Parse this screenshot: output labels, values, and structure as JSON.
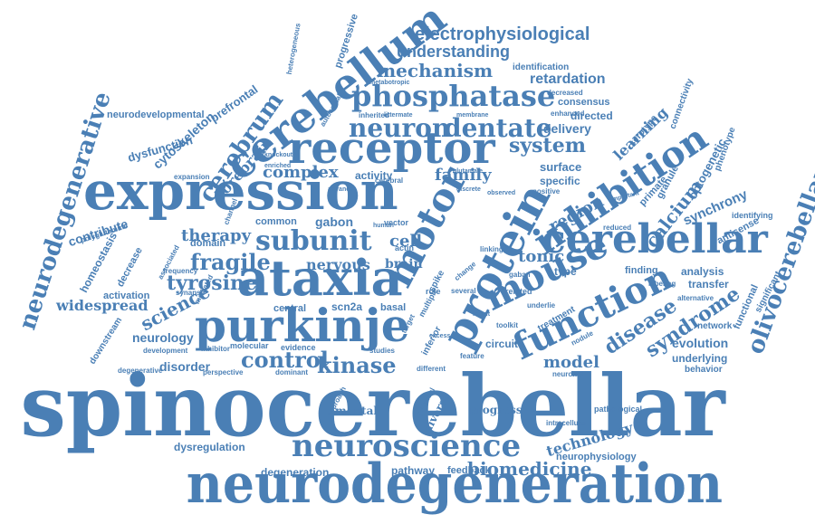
{
  "cloud": {
    "color": "#4a7fb5",
    "background": "#ffffff",
    "words": [
      "spinocerebellar",
      "neurodegeneration",
      "expression",
      "ataxia",
      "purkinje",
      "receptor",
      "cerebellum",
      "protein",
      "inhibition",
      "function",
      "mouse",
      "cerebellar",
      "phosphatase",
      "neuroscience",
      "motor",
      "subunit",
      "olivocerebellar",
      "neurodegenerative",
      "kinase",
      "control",
      "cerebrum",
      "fragile",
      "tyrosine",
      "dentate",
      "neuron",
      "system",
      "syndrome",
      "disease",
      "science",
      "model",
      "calcium",
      "mechanism",
      "electrophysiological",
      "understanding",
      "retardation",
      "region",
      "family",
      "tonic",
      "nervous",
      "cell",
      "brain",
      "therapy",
      "complex",
      "forebrain",
      "cytoskeleton",
      "prefrontal",
      "neurodevelopmental",
      "dysfunction",
      "widespread",
      "neurology",
      "disorder",
      "homeostasis",
      "contribute",
      "decrease",
      "evolution",
      "analysis",
      "transfer",
      "synchrony",
      "underlying",
      "behavior",
      "network",
      "antisense",
      "identifying",
      "granule",
      "primate",
      "optogenetic",
      "phenotype",
      "connectivity",
      "serotype",
      "learning",
      "delivery",
      "directed",
      "enhanced",
      "consensus",
      "surface",
      "specific",
      "positive",
      "activity",
      "mental",
      "progress",
      "diverse",
      "technology",
      "neurophysiology",
      "intracellular",
      "pathological",
      "biomedicine",
      "feedback",
      "pathway",
      "degeneration",
      "dysregulation",
      "mediated",
      "associated",
      "activation",
      "frequency",
      "synapse",
      "domain",
      "common",
      "channel",
      "gabon",
      "vector",
      "scn2a",
      "basal",
      "central",
      "molecular",
      "inhibitor",
      "development",
      "downstream",
      "degenerative",
      "perspective",
      "dominant",
      "evidence",
      "studies",
      "different",
      "inferior",
      "circuit",
      "nodule",
      "neuronal",
      "treatment",
      "labeling",
      "finding",
      "type",
      "related",
      "gaban",
      "change",
      "several",
      "cerebral",
      "alternative",
      "significant",
      "functional",
      "reduced",
      "important",
      "progressive",
      "heterogeneous",
      "autosomal",
      "metabotropic",
      "identification",
      "decreased",
      "membrane",
      "littermate",
      "inherited",
      "enriched",
      "knockout",
      "expansion",
      "polyglutamine",
      "glutamate",
      "discrete",
      "observed",
      "advance",
      "human",
      "actin",
      "role",
      "approach",
      "toolkit",
      "underlie",
      "multiple",
      "spike",
      "target",
      "potential",
      "feature",
      "result",
      "excess",
      "linking"
    ]
  }
}
